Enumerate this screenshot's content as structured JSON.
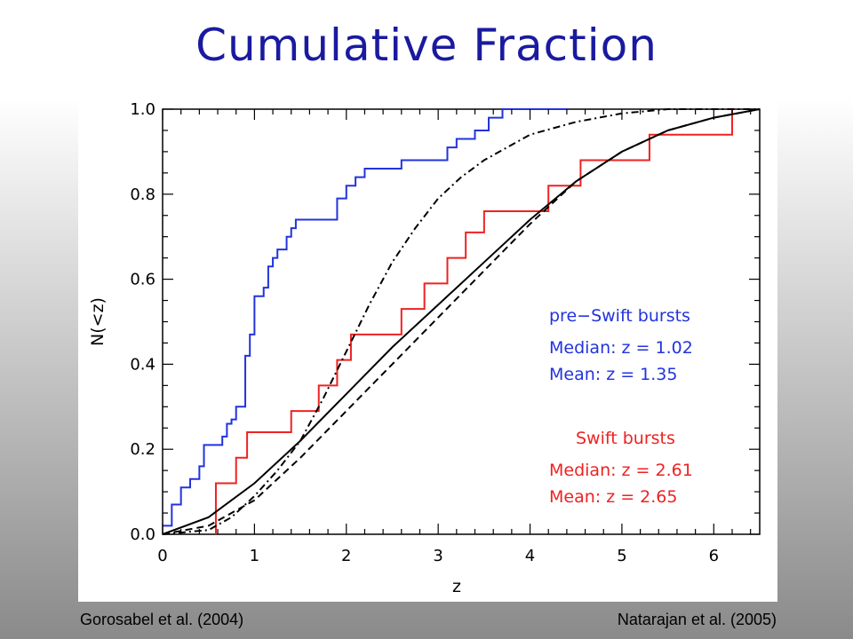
{
  "slide": {
    "title": "Cumulative Fraction",
    "footer_left": "Gorosabel et al. (2004)",
    "footer_right": "Natarajan et al. (2005)"
  },
  "colors": {
    "title": "#1a1aa0",
    "blue": "#2233dd",
    "red": "#ee2222",
    "black": "#000000"
  },
  "chart_data": {
    "type": "line",
    "xlabel": "z",
    "ylabel": "N(<z)",
    "xlim": [
      0,
      6.5
    ],
    "ylim": [
      0,
      1.0
    ],
    "xticks": [
      "0",
      "1",
      "2",
      "3",
      "4",
      "5",
      "6"
    ],
    "yticks": [
      "0.0",
      "0.2",
      "0.4",
      "0.6",
      "0.8",
      "1.0"
    ],
    "grid": false,
    "series": [
      {
        "name": "pre−Swift bursts",
        "style": "step",
        "color": "#2233dd",
        "x": [
          0,
          0.1,
          0.2,
          0.3,
          0.4,
          0.45,
          0.65,
          0.7,
          0.75,
          0.8,
          0.9,
          0.95,
          1.0,
          1.1,
          1.15,
          1.2,
          1.25,
          1.35,
          1.4,
          1.45,
          1.5,
          1.55,
          1.65,
          1.9,
          2.0,
          2.1,
          2.2,
          2.35,
          2.6,
          3.1,
          3.2,
          3.4,
          3.55,
          3.7,
          4.4
        ],
        "y": [
          0.02,
          0.07,
          0.11,
          0.13,
          0.16,
          0.21,
          0.23,
          0.26,
          0.27,
          0.3,
          0.42,
          0.47,
          0.56,
          0.58,
          0.63,
          0.65,
          0.67,
          0.7,
          0.72,
          0.74,
          0.74,
          0.74,
          0.74,
          0.79,
          0.82,
          0.84,
          0.86,
          0.86,
          0.88,
          0.91,
          0.93,
          0.95,
          0.98,
          1.0,
          1.0
        ]
      },
      {
        "name": "Swift bursts",
        "style": "step",
        "color": "#ee2222",
        "x": [
          0.58,
          0.58,
          0.8,
          0.92,
          1.4,
          1.7,
          1.9,
          2.05,
          2.6,
          2.85,
          3.1,
          3.3,
          3.5,
          3.6,
          4.2,
          4.55,
          5.3,
          6.2,
          6.2
        ],
        "y": [
          0.0,
          0.12,
          0.18,
          0.24,
          0.29,
          0.35,
          0.41,
          0.47,
          0.53,
          0.59,
          0.65,
          0.71,
          0.76,
          0.76,
          0.82,
          0.88,
          0.94,
          0.94,
          1.0
        ]
      },
      {
        "style": "solid",
        "color": "#000000",
        "x": [
          0,
          0.5,
          1.0,
          1.5,
          2.0,
          2.5,
          3.0,
          3.5,
          4.0,
          4.5,
          5.0,
          5.5,
          6.0,
          6.5
        ],
        "y": [
          0.0,
          0.04,
          0.12,
          0.22,
          0.33,
          0.44,
          0.54,
          0.64,
          0.74,
          0.83,
          0.9,
          0.95,
          0.98,
          1.0
        ]
      },
      {
        "style": "dashed",
        "color": "#000000",
        "x": [
          0,
          0.5,
          1.0,
          1.5,
          2.0,
          2.5,
          3.0,
          3.5,
          4.0,
          4.5,
          5.0,
          5.5,
          6.0,
          6.5
        ],
        "y": [
          0.0,
          0.02,
          0.08,
          0.18,
          0.29,
          0.4,
          0.51,
          0.62,
          0.73,
          0.83,
          0.9,
          0.95,
          0.98,
          1.0
        ]
      },
      {
        "style": "dash-dot",
        "color": "#000000",
        "x": [
          0,
          0.5,
          0.75,
          1.0,
          1.25,
          1.5,
          1.75,
          2.0,
          2.25,
          2.5,
          2.75,
          3.0,
          3.25,
          3.5,
          3.75,
          4.0,
          4.5,
          5.0,
          5.5,
          6.0,
          6.5
        ],
        "y": [
          0.0,
          0.01,
          0.04,
          0.09,
          0.15,
          0.22,
          0.32,
          0.43,
          0.54,
          0.64,
          0.72,
          0.79,
          0.84,
          0.88,
          0.91,
          0.94,
          0.97,
          0.99,
          1.0,
          1.0,
          1.0
        ]
      }
    ],
    "annotations": [
      {
        "text": "pre−Swift bursts",
        "color": "#2233dd"
      },
      {
        "text": "Median: z = 1.02",
        "color": "#2233dd"
      },
      {
        "text": "Mean:  z = 1.35",
        "color": "#2233dd"
      },
      {
        "text": "Swift bursts",
        "color": "#ee2222"
      },
      {
        "text": "Median: z = 2.61",
        "color": "#ee2222"
      },
      {
        "text": "Mean:  z = 2.65",
        "color": "#ee2222"
      }
    ]
  }
}
